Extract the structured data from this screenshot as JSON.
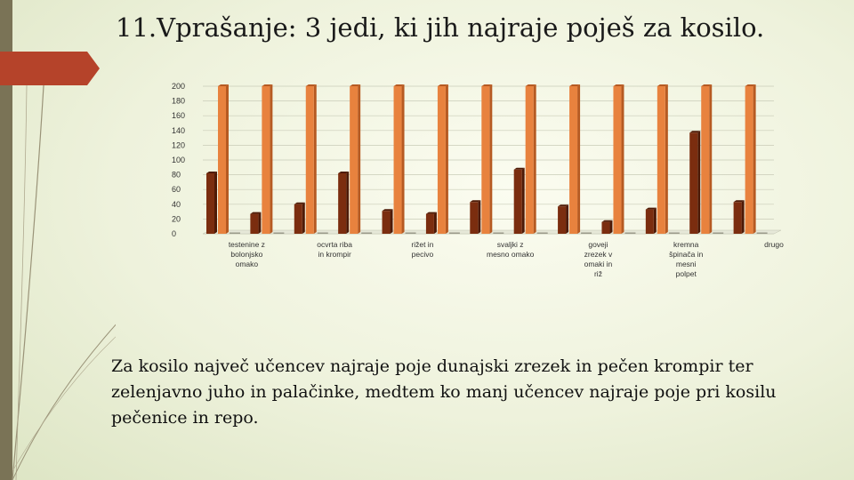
{
  "slide": {
    "title": "11.Vprašanje: 3 jedi, ki jih najraje poješ za kosilo.",
    "summary": "Za kosilo največ učencev najraje poje dunajski zrezek in pečen krompir ter zelenjavno juho in palačinke, medtem ko manj učencev najraje poje pri kosilu pečenice in repo."
  },
  "theme": {
    "accent": "#b5432a",
    "side_bar": "#7a7356",
    "dark_bar": "#7b2d0f",
    "orange_bar": "#e8823e"
  },
  "chart_data": {
    "type": "bar",
    "title": "",
    "xlabel": "",
    "ylabel": "",
    "ylim": [
      0,
      200
    ],
    "y_ticks": [
      0,
      20,
      40,
      60,
      80,
      100,
      120,
      140,
      160,
      180,
      200
    ],
    "grid": true,
    "categories": [
      "testenine z bolonjsko omako",
      "",
      "ocvrta riba in krompir",
      "",
      "rižet in pecivo",
      "",
      "svaljki z mesno omako",
      "",
      "goveji zrezek v omaki in riž",
      "",
      "kremna špinača in mesni polpet",
      "",
      "drugo"
    ],
    "series": [
      {
        "values": [
          82,
          27,
          40,
          82,
          31,
          27,
          43,
          87,
          37,
          16,
          33,
          137,
          43
        ]
      },
      {
        "values": [
          200,
          200,
          200,
          200,
          200,
          200,
          200,
          200,
          200,
          200,
          200,
          200,
          200
        ]
      },
      {
        "values": [
          0,
          0,
          0,
          0,
          0,
          0,
          0,
          0,
          0,
          0,
          0,
          0,
          0
        ]
      }
    ]
  }
}
